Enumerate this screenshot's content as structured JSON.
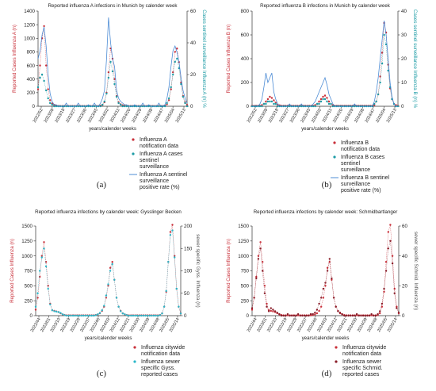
{
  "figure": {
    "panel_labels": [
      "(a)",
      "(b)",
      "(c)",
      "(d)"
    ]
  },
  "chart_data": [
    {
      "panel": "(a)",
      "type": "line",
      "title": "Reported influenza A infections in Munich by calender week",
      "xlabel": "years/calender weeks",
      "ylabel": "Reported Cases Influenza A (n)",
      "y2label": "Cases sentinel surveillance Influenza A (n) %",
      "ylim": [
        0,
        1400
      ],
      "y2lim": [
        0,
        60
      ],
      "yticks": [
        0,
        200,
        400,
        600,
        800,
        1000,
        1200,
        1400
      ],
      "y2ticks": [
        0,
        20,
        40,
        60
      ],
      "x_tick_labels": [
        "2022/52",
        "2023/09",
        "2023/18",
        "2023/27",
        "2023/36",
        "2023/45",
        "2024/02",
        "2024/11",
        "2024/20",
        "2024/29",
        "2024/38",
        "2024/47",
        "2025/04",
        "2025/13"
      ],
      "legend_position": "below",
      "legend": [
        {
          "label": "Influenza A notification data",
          "marker": "dot",
          "color": "#c9303a"
        },
        {
          "label": "Influenza A cases sentinel surveillance",
          "marker": "dot",
          "color": "#1e9ca6"
        },
        {
          "label": "Influenza A sentinel surveillance positive rate (%)",
          "marker": "line",
          "color": "#3a7fd0"
        }
      ],
      "series": [
        {
          "name": "Influenza A notification data",
          "axis": "left",
          "color": "#c9303a",
          "values": [
            250,
            600,
            1000,
            1180,
            600,
            250,
            90,
            40,
            20,
            10,
            5,
            5,
            5,
            5,
            5,
            5,
            5,
            5,
            5,
            5,
            5,
            5,
            5,
            5,
            5,
            5,
            5,
            5,
            5,
            5,
            5,
            10,
            20,
            60,
            200,
            500,
            850,
            700,
            400,
            150,
            60,
            30,
            15,
            10,
            5,
            5,
            5,
            5,
            5,
            5,
            5,
            5,
            5,
            5,
            5,
            5,
            5,
            5,
            5,
            5,
            5,
            5,
            5,
            10,
            30,
            90,
            250,
            500,
            800,
            850,
            650,
            350,
            150,
            60,
            20
          ]
        },
        {
          "name": "Influenza A cases sentinel surveillance",
          "axis": "right",
          "color": "#1e9ca6",
          "values": [
            12,
            18,
            20,
            16,
            10,
            5,
            2,
            1,
            0,
            0,
            0,
            0,
            0,
            0,
            0,
            0,
            0,
            0,
            0,
            0,
            0,
            0,
            0,
            0,
            0,
            0,
            0,
            0,
            0,
            0,
            0,
            0,
            1,
            3,
            8,
            18,
            28,
            22,
            14,
            6,
            2,
            1,
            0,
            0,
            0,
            0,
            0,
            0,
            0,
            0,
            0,
            0,
            0,
            0,
            0,
            0,
            0,
            0,
            0,
            0,
            0,
            0,
            0,
            0,
            2,
            5,
            12,
            20,
            28,
            30,
            24,
            14,
            6,
            2,
            0
          ]
        },
        {
          "name": "Influenza A sentinel surveillance positive rate (%)",
          "axis": "right",
          "color": "#3a7fd0",
          "values": [
            30,
            35,
            45,
            50,
            38,
            20,
            8,
            3,
            1,
            1,
            0,
            0,
            0,
            0,
            2,
            0,
            0,
            0,
            0,
            0,
            2,
            0,
            0,
            0,
            0,
            1,
            0,
            0,
            2,
            0,
            0,
            2,
            5,
            10,
            30,
            56,
            40,
            30,
            25,
            10,
            5,
            3,
            2,
            1,
            1,
            0,
            0,
            0,
            1,
            0,
            0,
            0,
            2,
            0,
            0,
            1,
            0,
            0,
            0,
            0,
            2,
            0,
            0,
            1,
            5,
            12,
            25,
            35,
            38,
            34,
            28,
            18,
            10,
            5,
            2
          ]
        }
      ]
    },
    {
      "panel": "(b)",
      "type": "line",
      "title": "Reported influenza B infections in Munich by calender week",
      "xlabel": "years/calender weeks",
      "ylabel": "Reported Cases Influenza B (n)",
      "y2label": "Cases sentinel surveillance Influenza B (n) %",
      "ylim": [
        0,
        800
      ],
      "y2lim": [
        0,
        40
      ],
      "yticks": [
        0,
        200,
        400,
        600,
        800
      ],
      "y2ticks": [
        0,
        10,
        20,
        30,
        40
      ],
      "x_tick_labels": [
        "2022/52",
        "2023/09",
        "2023/18",
        "2023/27",
        "2023/36",
        "2023/45",
        "2024/02",
        "2024/11",
        "2024/20",
        "2024/29",
        "2024/38",
        "2024/47",
        "2025/04",
        "2025/13"
      ],
      "legend_position": "below",
      "legend": [
        {
          "label": "Influenza B notification data",
          "marker": "dot",
          "color": "#c9303a"
        },
        {
          "label": "Influenza B cases sentinel surveillance",
          "marker": "dot",
          "color": "#1e9ca6"
        },
        {
          "label": "Influenza B sentinel surveillance positive rate (%)",
          "marker": "line",
          "color": "#3a7fd0"
        }
      ],
      "series": [
        {
          "name": "Influenza B notification data",
          "axis": "left",
          "color": "#c9303a",
          "values": [
            5,
            5,
            5,
            5,
            5,
            10,
            20,
            40,
            60,
            80,
            70,
            50,
            30,
            15,
            8,
            5,
            5,
            5,
            5,
            5,
            5,
            5,
            5,
            5,
            5,
            5,
            5,
            5,
            5,
            5,
            5,
            5,
            10,
            20,
            40,
            60,
            80,
            90,
            70,
            40,
            20,
            10,
            5,
            5,
            5,
            5,
            5,
            5,
            5,
            5,
            5,
            5,
            5,
            5,
            5,
            5,
            5,
            5,
            5,
            5,
            5,
            5,
            10,
            40,
            100,
            250,
            450,
            700,
            620,
            350,
            150,
            60,
            20,
            10,
            5
          ]
        },
        {
          "name": "Influenza B cases sentinel surveillance",
          "axis": "right",
          "color": "#1e9ca6",
          "values": [
            0,
            0,
            0,
            0,
            0,
            0,
            1,
            1,
            2,
            2,
            2,
            1,
            1,
            0,
            0,
            0,
            0,
            0,
            0,
            0,
            0,
            0,
            0,
            0,
            0,
            0,
            0,
            0,
            0,
            0,
            0,
            0,
            0,
            1,
            1,
            2,
            3,
            3,
            2,
            1,
            1,
            0,
            0,
            0,
            0,
            0,
            0,
            0,
            0,
            0,
            0,
            0,
            0,
            0,
            0,
            0,
            0,
            0,
            0,
            0,
            0,
            0,
            1,
            2,
            5,
            10,
            18,
            30,
            26,
            15,
            8,
            3,
            1,
            0,
            0
          ]
        },
        {
          "name": "Influenza B sentinel surveillance positive rate (%)",
          "axis": "right",
          "color": "#3a7fd0",
          "values": [
            0,
            0,
            0,
            0,
            1,
            3,
            8,
            14,
            10,
            12,
            14,
            6,
            3,
            1,
            0,
            0,
            0,
            0,
            0,
            1,
            0,
            0,
            0,
            0,
            0,
            1,
            0,
            0,
            0,
            0,
            0,
            1,
            2,
            4,
            6,
            8,
            10,
            12,
            9,
            5,
            3,
            1,
            0,
            0,
            0,
            0,
            0,
            0,
            0,
            0,
            0,
            0,
            1,
            0,
            0,
            0,
            0,
            0,
            0,
            0,
            0,
            0,
            2,
            6,
            12,
            20,
            28,
            36,
            30,
            20,
            10,
            4,
            1,
            0,
            0
          ]
        }
      ]
    },
    {
      "panel": "(c)",
      "type": "line",
      "title": "Reported influenza infections by calender week: Gysslinger Becken",
      "xlabel": "years/calender weeks",
      "ylabel": "Reported Cases Influenza (n)",
      "y2label": "sewer specific Gyss. Influenza (n)",
      "ylim": [
        0,
        1500
      ],
      "y2lim": [
        0,
        200
      ],
      "yticks": [
        0,
        250,
        500,
        750,
        1000,
        1250,
        1500
      ],
      "y2ticks": [
        0,
        50,
        100,
        150,
        200
      ],
      "x_tick_labels": [
        "2022/44",
        "2023/01",
        "2023/10",
        "2023/19",
        "2023/28",
        "2023/37",
        "2023/46",
        "2024/03",
        "2024/12",
        "2024/21",
        "2024/30",
        "2024/39",
        "2024/48",
        "2025/05",
        "2025/14"
      ],
      "legend_position": "below",
      "legend": [
        {
          "label": "Influenza citywide notification data",
          "marker": "dot",
          "color": "#c9303a"
        },
        {
          "label": "Influenza sewer specific Gyss. reported cases",
          "marker": "dot",
          "color": "#2ab7c9"
        }
      ],
      "series": [
        {
          "name": "Influenza citywide notification data",
          "axis": "left",
          "color": "#c9303a",
          "values": [
            100,
            300,
            650,
            1000,
            1230,
            900,
            500,
            200,
            90,
            80,
            70,
            60,
            40,
            20,
            10,
            5,
            5,
            5,
            5,
            5,
            5,
            5,
            5,
            5,
            5,
            5,
            5,
            5,
            5,
            10,
            20,
            40,
            80,
            150,
            300,
            500,
            800,
            900,
            600,
            300,
            150,
            80,
            40,
            20,
            10,
            5,
            5,
            5,
            5,
            5,
            5,
            5,
            5,
            5,
            5,
            5,
            5,
            5,
            5,
            5,
            10,
            40,
            150,
            400,
            900,
            1400,
            1520,
            1000,
            450,
            150,
            40
          ]
        },
        {
          "name": "Influenza sewer specific Gyss. reported cases",
          "axis": "right",
          "color": "#2ab7c9",
          "values": [
            20,
            50,
            100,
            130,
            150,
            110,
            60,
            25,
            12,
            10,
            9,
            8,
            6,
            3,
            1,
            0,
            0,
            0,
            0,
            0,
            0,
            0,
            0,
            0,
            0,
            0,
            0,
            0,
            0,
            1,
            3,
            6,
            12,
            22,
            45,
            70,
            100,
            115,
            80,
            40,
            20,
            10,
            5,
            3,
            1,
            0,
            0,
            0,
            0,
            0,
            0,
            0,
            0,
            0,
            0,
            0,
            0,
            0,
            0,
            0,
            1,
            5,
            20,
            55,
            120,
            180,
            190,
            130,
            60,
            20,
            5
          ]
        }
      ]
    },
    {
      "panel": "(d)",
      "type": "line",
      "title": "Reported influenza infections by calender week: Schmidbartlanger",
      "xlabel": "years/calender weeks",
      "ylabel": "Reported Cases Influenza (n)",
      "y2label": "sewer specific Schmid. Influenza (n)",
      "ylim": [
        0,
        1500
      ],
      "y2lim": [
        0,
        60
      ],
      "yticks": [
        0,
        250,
        500,
        750,
        1000,
        1250,
        1500
      ],
      "y2ticks": [
        0,
        20,
        40,
        60
      ],
      "x_tick_labels": [
        "2022/44",
        "2023/01",
        "2023/10",
        "2023/19",
        "2023/28",
        "2023/37",
        "2023/46",
        "2024/03",
        "2024/12",
        "2024/21",
        "2024/30",
        "2024/39",
        "2024/48",
        "2025/05",
        "2025/14"
      ],
      "legend_position": "below",
      "legend": [
        {
          "label": "Influenza citywide notification data",
          "marker": "dot",
          "color": "#c9303a"
        },
        {
          "label": "Influenza sewer specific Schmid. reported cases",
          "marker": "dot",
          "color": "#8a1e2a"
        }
      ],
      "series": [
        {
          "name": "Influenza citywide notification data",
          "axis": "left",
          "color": "#c9303a",
          "values": [
            100,
            300,
            650,
            1000,
            1230,
            900,
            500,
            200,
            90,
            80,
            70,
            60,
            40,
            20,
            10,
            5,
            5,
            5,
            5,
            5,
            5,
            5,
            5,
            5,
            5,
            5,
            5,
            5,
            5,
            10,
            20,
            40,
            80,
            150,
            300,
            500,
            800,
            900,
            600,
            300,
            150,
            80,
            40,
            20,
            10,
            5,
            5,
            5,
            5,
            5,
            5,
            5,
            5,
            5,
            5,
            5,
            5,
            5,
            5,
            5,
            10,
            40,
            150,
            400,
            900,
            1400,
            1520,
            1000,
            450,
            150,
            40
          ]
        },
        {
          "name": "Influenza sewer specific Schmid. reported cases",
          "axis": "right",
          "color": "#8a1e2a",
          "values": [
            5,
            12,
            25,
            38,
            45,
            30,
            15,
            6,
            3,
            5,
            4,
            3,
            2,
            1,
            0,
            0,
            0,
            1,
            0,
            0,
            0,
            0,
            1,
            0,
            0,
            0,
            0,
            0,
            1,
            1,
            2,
            4,
            8,
            12,
            18,
            22,
            30,
            38,
            25,
            12,
            6,
            3,
            2,
            1,
            0,
            0,
            0,
            0,
            0,
            0,
            1,
            0,
            0,
            0,
            0,
            0,
            0,
            1,
            0,
            0,
            1,
            3,
            8,
            18,
            30,
            45,
            50,
            35,
            15,
            5,
            2
          ]
        }
      ]
    }
  ]
}
